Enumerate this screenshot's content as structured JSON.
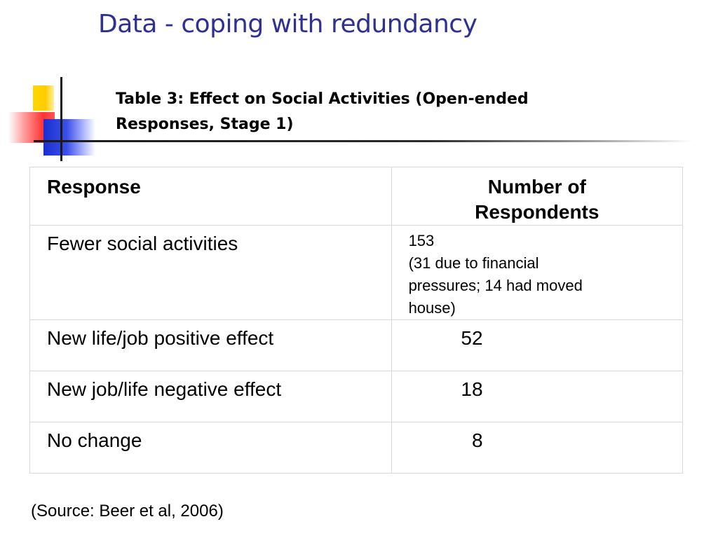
{
  "slide": {
    "title": "Data - coping with redundancy",
    "subtitle_line1": "Table 3: Effect on Social Activities (Open-ended",
    "subtitle_line2": "Responses, Stage 1)",
    "source": "(Source: Beer et al, 2006)"
  },
  "table": {
    "headers": {
      "response": "Response",
      "number_line1": "Number of",
      "number_line2": "Respondents"
    },
    "rows": [
      {
        "response": "Fewer social activities",
        "number": "153",
        "note_line1": "(31 due to financial",
        "note_line2": "pressures; 14 had moved",
        "note_line3": "house)"
      },
      {
        "response": "New life/job positive effect",
        "number": "52"
      },
      {
        "response": "New job/life negative effect",
        "number": "18"
      },
      {
        "response": "No change",
        "number": "8"
      }
    ]
  },
  "colors": {
    "title": "#2e3192",
    "text": "#000000",
    "table_border": "#b0b0b0"
  }
}
